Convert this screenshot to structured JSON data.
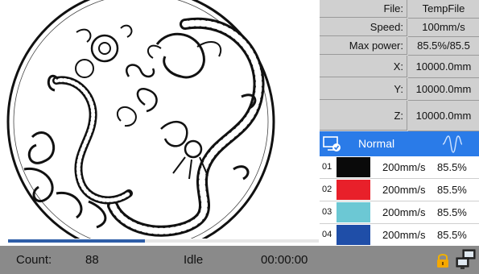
{
  "info": {
    "file_label": "File:",
    "file_value": "TempFile",
    "speed_label": "Speed:",
    "speed_value": "100mm/s",
    "maxpower_label": "Max power:",
    "maxpower_value": "85.5%/85.5",
    "x_label": "X:",
    "x_value": "10000.0mm",
    "y_label": "Y:",
    "y_value": "10000.0mm",
    "z_label": "Z:",
    "z_value": "10000.0mm"
  },
  "mode": {
    "label": "Normal",
    "icon": "monitor-check-icon",
    "wave_icon": "waveform-icon"
  },
  "layers": [
    {
      "num": "01",
      "color": "#0a0a0a",
      "speed": "200mm/s",
      "power": "85.5%"
    },
    {
      "num": "02",
      "color": "#e8202a",
      "speed": "200mm/s",
      "power": "85.5%"
    },
    {
      "num": "03",
      "color": "#6cc8d4",
      "speed": "200mm/s",
      "power": "85.5%"
    },
    {
      "num": "04",
      "color": "#1f4ea8",
      "speed": "200mm/s",
      "power": "85.5%"
    }
  ],
  "progress": {
    "fraction": 0.44,
    "color": "#2e5ea8"
  },
  "status": {
    "count_label": "Count:",
    "count_value": "88",
    "state": "Idle",
    "time": "00:00:00",
    "lock_icon": "lock-icon",
    "network_icon": "network-icon"
  },
  "preview": {
    "subject": "dragon-phoenix-artwork"
  }
}
